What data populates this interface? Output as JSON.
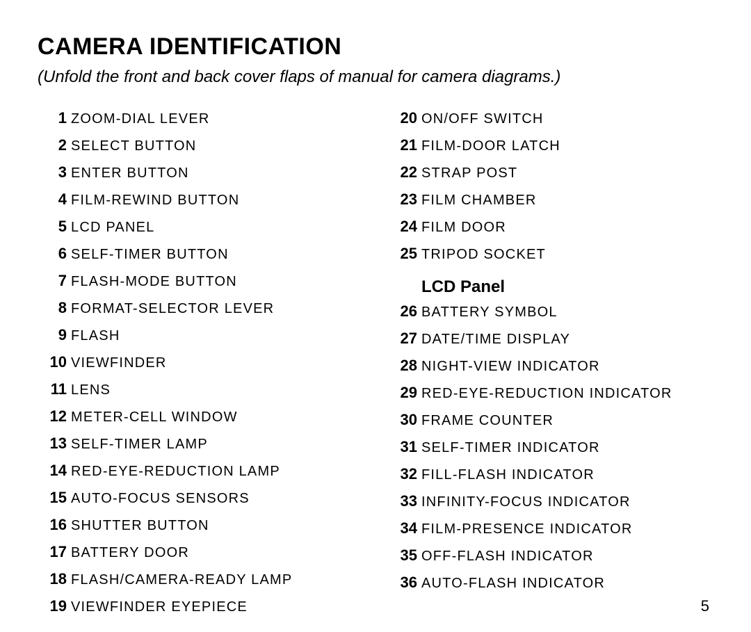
{
  "title": "CAMERA IDENTIFICATION",
  "subtitle": "(Unfold the front and back cover flaps of manual for camera diagrams.)",
  "subheading": "LCD Panel",
  "page_number": "5",
  "colors": {
    "background": "#ffffff",
    "text": "#000000"
  },
  "typography": {
    "title_fontsize": 34,
    "subtitle_fontsize": 24,
    "item_num_fontsize": 22,
    "item_label_fontsize": 20,
    "subheading_fontsize": 24,
    "page_num_fontsize": 22,
    "font_family": "Arial"
  },
  "left_items": [
    {
      "num": "1",
      "label": "ZOOM-DIAL LEVER"
    },
    {
      "num": "2",
      "label": "SELECT BUTTON"
    },
    {
      "num": "3",
      "label": "ENTER BUTTON"
    },
    {
      "num": "4",
      "label": "FILM-REWIND BUTTON"
    },
    {
      "num": "5",
      "label": "LCD PANEL"
    },
    {
      "num": "6",
      "label": "SELF-TIMER BUTTON"
    },
    {
      "num": "7",
      "label": "FLASH-MODE BUTTON"
    },
    {
      "num": "8",
      "label": "FORMAT-SELECTOR LEVER"
    },
    {
      "num": "9",
      "label": "FLASH"
    },
    {
      "num": "10",
      "label": "VIEWFINDER"
    },
    {
      "num": "11",
      "label": "LENS"
    },
    {
      "num": "12",
      "label": "METER-CELL WINDOW"
    },
    {
      "num": "13",
      "label": "SELF-TIMER LAMP"
    },
    {
      "num": "14",
      "label": "RED-EYE-REDUCTION LAMP"
    },
    {
      "num": "15",
      "label": "AUTO-FOCUS SENSORS"
    },
    {
      "num": "16",
      "label": "SHUTTER BUTTON"
    },
    {
      "num": "17",
      "label": "BATTERY DOOR"
    },
    {
      "num": "18",
      "label": "FLASH/CAMERA-READY LAMP"
    },
    {
      "num": "19",
      "label": "VIEWFINDER EYEPIECE"
    }
  ],
  "right_top_items": [
    {
      "num": "20",
      "label": "ON/OFF SWITCH"
    },
    {
      "num": "21",
      "label": "FILM-DOOR LATCH"
    },
    {
      "num": "22",
      "label": "STRAP POST"
    },
    {
      "num": "23",
      "label": "FILM CHAMBER"
    },
    {
      "num": "24",
      "label": "FILM DOOR"
    },
    {
      "num": "25",
      "label": "TRIPOD SOCKET"
    }
  ],
  "right_bottom_items": [
    {
      "num": "26",
      "label": "BATTERY SYMBOL"
    },
    {
      "num": "27",
      "label": "DATE/TIME DISPLAY"
    },
    {
      "num": "28",
      "label": "NIGHT-VIEW INDICATOR"
    },
    {
      "num": "29",
      "label": "RED-EYE-REDUCTION INDICATOR"
    },
    {
      "num": "30",
      "label": "FRAME COUNTER"
    },
    {
      "num": "31",
      "label": "SELF-TIMER INDICATOR"
    },
    {
      "num": "32",
      "label": "FILL-FLASH INDICATOR"
    },
    {
      "num": "33",
      "label": "INFINITY-FOCUS INDICATOR"
    },
    {
      "num": "34",
      "label": "FILM-PRESENCE INDICATOR"
    },
    {
      "num": "35",
      "label": "OFF-FLASH INDICATOR"
    },
    {
      "num": "36",
      "label": "AUTO-FLASH INDICATOR"
    }
  ]
}
